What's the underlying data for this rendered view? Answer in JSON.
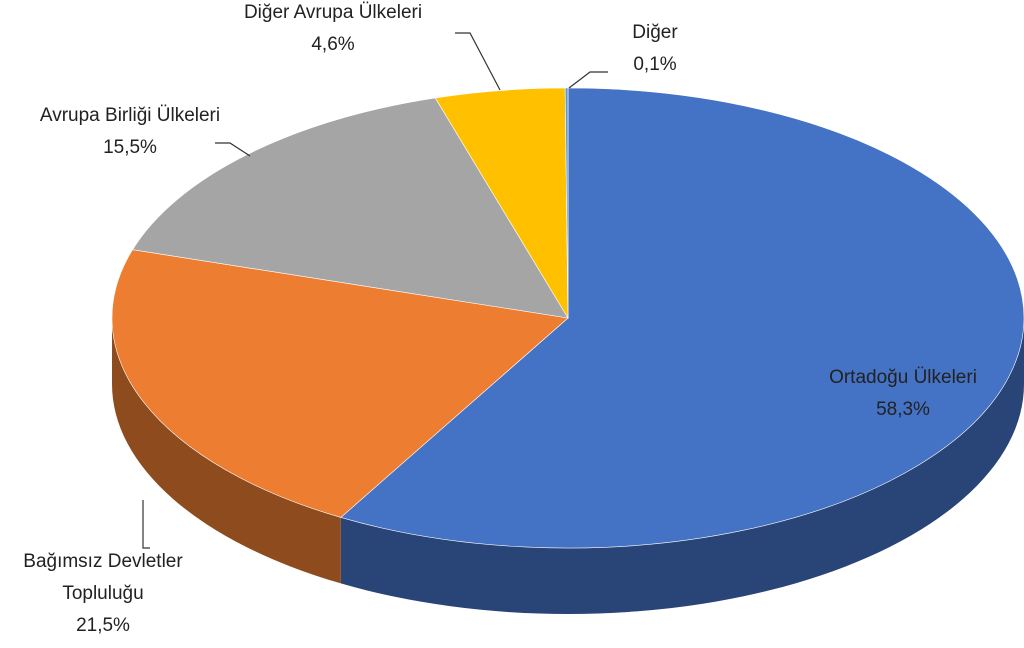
{
  "chart_data": {
    "type": "pie3d",
    "categories": [
      "Ortadoğu Ülkeleri",
      "Bağımsız Devletler Topluluğu",
      "Avrupa Birliği Ülkeleri",
      "Diğer Avrupa Ülkeleri",
      "Diğer"
    ],
    "values": [
      58.3,
      21.5,
      15.5,
      4.6,
      0.1
    ],
    "value_labels": [
      "58,3%",
      "21,5%",
      "15,5%",
      "4,6%",
      "0,1%"
    ],
    "colors": [
      "#4472c4",
      "#ed7d31",
      "#a5a5a5",
      "#ffc000",
      "#5b9bd5"
    ]
  }
}
